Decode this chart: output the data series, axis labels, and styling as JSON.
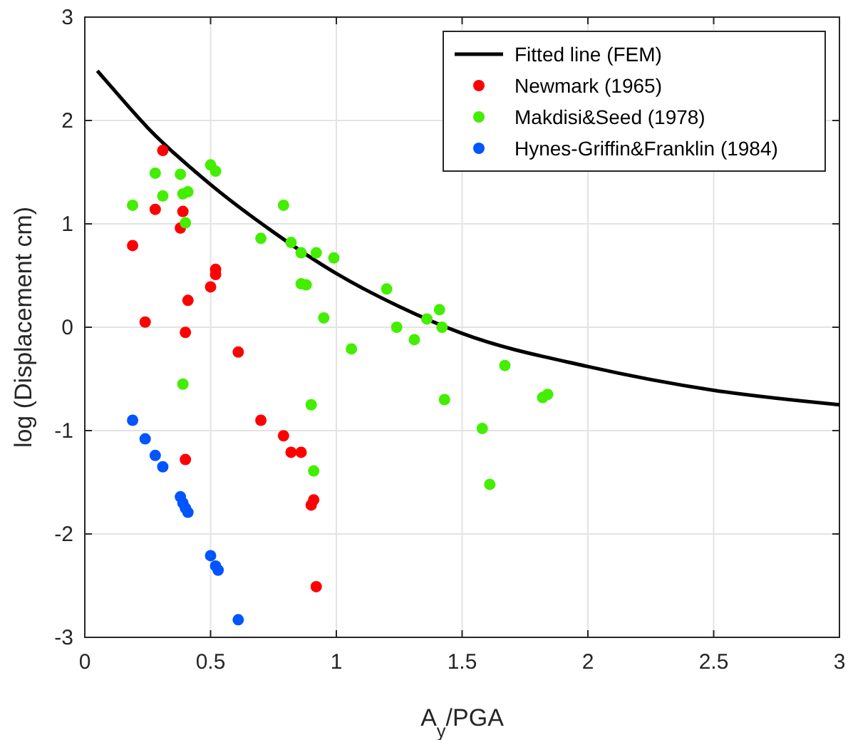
{
  "chart_data": {
    "type": "scatter",
    "xlabel": "A$_{y}$/PGA",
    "ylabel": "log (Displacement cm)",
    "xlim": [
      0,
      3
    ],
    "ylim": [
      -3,
      3
    ],
    "xticks": [
      0,
      0.5,
      1,
      1.5,
      2,
      2.5,
      3
    ],
    "yticks": [
      -3,
      -2,
      -1,
      0,
      1,
      2,
      3
    ],
    "grid": true,
    "legend": "top right",
    "marker": "circle",
    "series": [
      {
        "name": "Fitted line (FEM)",
        "type": "line",
        "color": "#000000",
        "line_style": "solid",
        "marker": "none",
        "x": [
          0.05,
          0.1,
          0.25,
          0.5,
          0.75,
          1,
          1.25,
          1.5,
          2,
          2.5,
          3
        ],
        "values": [
          2.48,
          2.34,
          1.93,
          1.38,
          0.92,
          0.52,
          0.2,
          -0.06,
          -0.38,
          -0.61,
          -0.75
        ]
      },
      {
        "name": "Newmark (1965)",
        "color": "#ff0000",
        "x": [
          0.31,
          0.28,
          0.39,
          0.38,
          0.19,
          0.52,
          0.52,
          0.5,
          0.41,
          0.24,
          0.4,
          0.61,
          0.7,
          0.79,
          0.82,
          0.86,
          0.4,
          0.91,
          0.9,
          0.92
        ],
        "values": [
          1.71,
          1.14,
          1.12,
          0.96,
          0.79,
          0.56,
          0.51,
          0.39,
          0.26,
          0.05,
          -0.05,
          -0.24,
          -0.9,
          -1.05,
          -1.21,
          -1.21,
          -1.28,
          -1.67,
          -1.72,
          -2.51
        ]
      },
      {
        "name": "Makdisi&Seed (1978)",
        "color": "#44ee00",
        "x": [
          0.19,
          0.28,
          0.31,
          0.38,
          0.39,
          0.41,
          0.4,
          0.5,
          0.52,
          0.79,
          0.7,
          0.82,
          0.86,
          0.92,
          0.99,
          0.86,
          0.88,
          0.95,
          1.06,
          0.39,
          1.2,
          1.41,
          1.36,
          1.42,
          1.24,
          1.31,
          1.67,
          1.82,
          1.84,
          1.43,
          0.9,
          1.58,
          1.61,
          0.91
        ],
        "values": [
          1.18,
          1.49,
          1.27,
          1.48,
          1.29,
          1.31,
          1.01,
          1.57,
          1.51,
          1.18,
          0.86,
          0.82,
          0.72,
          0.72,
          0.67,
          0.42,
          0.41,
          0.09,
          -0.21,
          -0.55,
          0.37,
          0.17,
          0.08,
          0.0,
          0.0,
          -0.12,
          -0.37,
          -0.68,
          -0.65,
          -0.7,
          -0.75,
          -0.98,
          -1.52,
          -1.39
        ]
      },
      {
        "name": "Hynes-Griffin&Franklin (1984)",
        "color": "#0055ff",
        "x": [
          0.19,
          0.24,
          0.28,
          0.31,
          0.38,
          0.39,
          0.4,
          0.41,
          0.5,
          0.52,
          0.53,
          0.61
        ],
        "values": [
          -0.9,
          -1.08,
          -1.24,
          -1.35,
          -1.64,
          -1.7,
          -1.75,
          -1.79,
          -2.21,
          -2.31,
          -2.35,
          -2.83
        ]
      }
    ]
  }
}
